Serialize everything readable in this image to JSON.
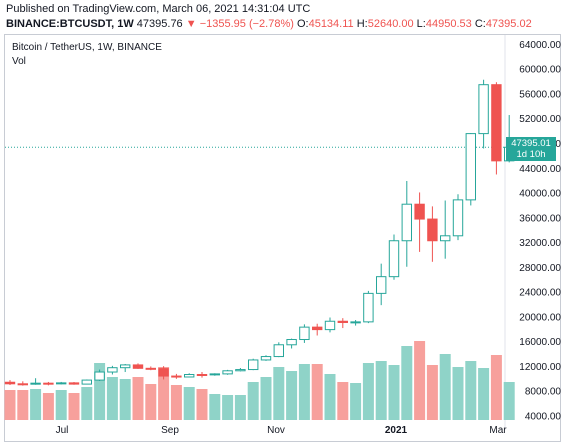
{
  "header": {
    "published": "Published on TradingView.com, March 06, 2021 14:31:04 UTC",
    "symbol": "BINANCE:BTCUSDT, 1W",
    "price": "47395.76",
    "change": "−1355.95 (−2.78%)",
    "o_label": "O:",
    "o_value": "45134.11",
    "h_label": "H:",
    "h_value": "52640.00",
    "l_label": "L:",
    "l_value": "44950.53",
    "c_label": "C:",
    "c_value": "47395.02"
  },
  "pane_title": "Bitcoin / TetherUS, 1W, BINANCE",
  "vol_title": "Vol",
  "price_tag": {
    "price": "47395.01",
    "countdown": "1d 10h"
  },
  "colors": {
    "up": "#26a69a",
    "down": "#ef5350",
    "up_body": "#ffffff",
    "vol_up": "#8fd3c8",
    "vol_down": "#f7a09c"
  },
  "chart_data": {
    "type": "candlestick",
    "symbol": "BTCUSDT",
    "interval": "1W",
    "y_ticks": [
      "64000.00",
      "60000.00",
      "56000.00",
      "52000.00",
      "48000.00",
      "44000.00",
      "40000.00",
      "36000.00",
      "32000.00",
      "28000.00",
      "24000.00",
      "20000.00",
      "16000.00",
      "12000.00",
      "8000.00",
      "4000.00"
    ],
    "x_ticks": [
      {
        "label": "Jul",
        "bold": false
      },
      {
        "label": "Sep",
        "bold": false
      },
      {
        "label": "Nov",
        "bold": false
      },
      {
        "label": "2021",
        "bold": true
      },
      {
        "label": "Mar",
        "bold": false
      }
    ],
    "ylim": [
      4000,
      65200
    ],
    "last_price": 47395.01,
    "candles": [
      {
        "o": 9450,
        "h": 9800,
        "l": 9000,
        "c": 9200,
        "v": 0.3
      },
      {
        "o": 9200,
        "h": 9600,
        "l": 8900,
        "c": 9150,
        "v": 0.3
      },
      {
        "o": 9150,
        "h": 10100,
        "l": 9050,
        "c": 9300,
        "v": 0.31
      },
      {
        "o": 9300,
        "h": 9500,
        "l": 8950,
        "c": 9200,
        "v": 0.27
      },
      {
        "o": 9200,
        "h": 9500,
        "l": 9100,
        "c": 9350,
        "v": 0.3
      },
      {
        "o": 9350,
        "h": 9500,
        "l": 9050,
        "c": 9150,
        "v": 0.27
      },
      {
        "o": 9150,
        "h": 9900,
        "l": 9100,
        "c": 9800,
        "v": 0.33
      },
      {
        "o": 9800,
        "h": 11500,
        "l": 9650,
        "c": 11100,
        "v": 0.57
      },
      {
        "o": 11100,
        "h": 12100,
        "l": 10700,
        "c": 11800,
        "v": 0.43
      },
      {
        "o": 11800,
        "h": 12400,
        "l": 11100,
        "c": 12250,
        "v": 0.41
      },
      {
        "o": 12250,
        "h": 12500,
        "l": 11600,
        "c": 11700,
        "v": 0.43
      },
      {
        "o": 11700,
        "h": 12000,
        "l": 11400,
        "c": 11650,
        "v": 0.36
      },
      {
        "o": 11650,
        "h": 12050,
        "l": 9900,
        "c": 10450,
        "v": 0.53
      },
      {
        "o": 10450,
        "h": 10800,
        "l": 10000,
        "c": 10300,
        "v": 0.35
      },
      {
        "o": 10300,
        "h": 10900,
        "l": 10250,
        "c": 10700,
        "v": 0.33
      },
      {
        "o": 10700,
        "h": 11100,
        "l": 10200,
        "c": 10650,
        "v": 0.31
      },
      {
        "o": 10650,
        "h": 10900,
        "l": 10500,
        "c": 10800,
        "v": 0.26
      },
      {
        "o": 10800,
        "h": 11450,
        "l": 10650,
        "c": 11300,
        "v": 0.25
      },
      {
        "o": 11300,
        "h": 11750,
        "l": 11200,
        "c": 11500,
        "v": 0.25
      },
      {
        "o": 11500,
        "h": 13250,
        "l": 11400,
        "c": 13050,
        "v": 0.38
      },
      {
        "o": 13050,
        "h": 13800,
        "l": 12900,
        "c": 13600,
        "v": 0.43
      },
      {
        "o": 13600,
        "h": 15900,
        "l": 13500,
        "c": 15500,
        "v": 0.53
      },
      {
        "o": 15500,
        "h": 16500,
        "l": 14900,
        "c": 16350,
        "v": 0.49
      },
      {
        "o": 16350,
        "h": 18800,
        "l": 15800,
        "c": 18350,
        "v": 0.56
      },
      {
        "o": 18350,
        "h": 18900,
        "l": 17000,
        "c": 17950,
        "v": 0.56
      },
      {
        "o": 17950,
        "h": 19900,
        "l": 17500,
        "c": 19300,
        "v": 0.46
      },
      {
        "o": 19300,
        "h": 19800,
        "l": 18200,
        "c": 19100,
        "v": 0.38
      },
      {
        "o": 19100,
        "h": 19500,
        "l": 18600,
        "c": 19200,
        "v": 0.37
      },
      {
        "o": 19200,
        "h": 24200,
        "l": 19000,
        "c": 23800,
        "v": 0.57
      },
      {
        "o": 23800,
        "h": 28600,
        "l": 21900,
        "c": 26500,
        "v": 0.59
      },
      {
        "o": 26500,
        "h": 33300,
        "l": 26000,
        "c": 32300,
        "v": 0.55
      },
      {
        "o": 32300,
        "h": 41950,
        "l": 28100,
        "c": 38200,
        "v": 0.74
      },
      {
        "o": 38200,
        "h": 40100,
        "l": 30500,
        "c": 35800,
        "v": 0.79
      },
      {
        "o": 35800,
        "h": 37850,
        "l": 28900,
        "c": 32300,
        "v": 0.55
      },
      {
        "o": 32300,
        "h": 38800,
        "l": 29400,
        "c": 33100,
        "v": 0.66
      },
      {
        "o": 33100,
        "h": 39800,
        "l": 32400,
        "c": 38900,
        "v": 0.53
      },
      {
        "o": 38900,
        "h": 49700,
        "l": 38000,
        "c": 49600,
        "v": 0.59
      },
      {
        "o": 49600,
        "h": 58300,
        "l": 47200,
        "c": 57500,
        "v": 0.52
      },
      {
        "o": 57500,
        "h": 57900,
        "l": 43000,
        "c": 45200,
        "v": 0.65
      },
      {
        "o": 45200,
        "h": 52600,
        "l": 44950,
        "c": 47395,
        "v": 0.38
      }
    ]
  }
}
